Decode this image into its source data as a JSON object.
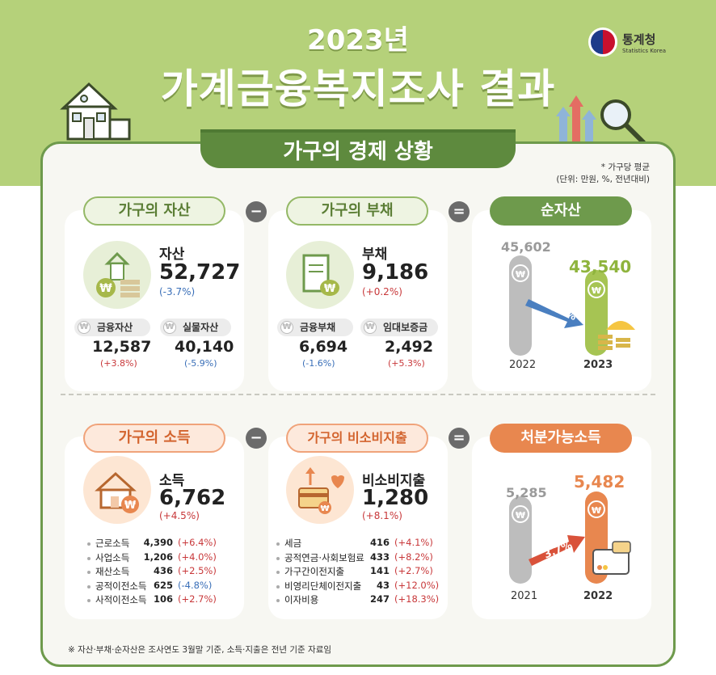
{
  "header": {
    "year": "2023년",
    "title": "가계금융복지조사 결과",
    "logo_ko": "통계청",
    "logo_en": "Statistics Korea"
  },
  "section": {
    "title": "가구의 경제 상황",
    "note1": "* 가구당 평균",
    "note2": "(단위: 만원, %, 전년대비)"
  },
  "operators": {
    "minus": "−",
    "equals": "="
  },
  "assets": {
    "pill": "가구의 자산",
    "label": "자산",
    "value": "52,727",
    "change": "(-3.7%)",
    "sub": [
      {
        "label": "금융자산",
        "value": "12,587",
        "change": "(+3.8%)"
      },
      {
        "label": "실물자산",
        "value": "40,140",
        "change": "(-5.9%)"
      }
    ]
  },
  "debt": {
    "pill": "가구의 부채",
    "label": "부채",
    "value": "9,186",
    "change": "(+0.2%)",
    "sub": [
      {
        "label": "금융부채",
        "value": "6,694",
        "change": "(-1.6%)"
      },
      {
        "label": "임대보증금",
        "value": "2,492",
        "change": "(+5.3%)"
      }
    ]
  },
  "net_assets": {
    "pill": "순자산",
    "years": [
      "2022",
      "2023"
    ],
    "values_text": [
      "45,602",
      "43,540"
    ],
    "change": "-4.5%"
  },
  "income": {
    "pill": "가구의 소득",
    "label": "소득",
    "value": "6,762",
    "change": "(+4.5%)",
    "items": [
      {
        "name": "근로소득",
        "value": "4,390",
        "change": "(+6.4%)"
      },
      {
        "name": "사업소득",
        "value": "1,206",
        "change": "(+4.0%)"
      },
      {
        "name": "재산소득",
        "value": "436",
        "change": "(+2.5%)"
      },
      {
        "name": "공적이전소득",
        "value": "625",
        "change": "(-4.8%)"
      },
      {
        "name": "사적이전소득",
        "value": "106",
        "change": "(+2.7%)"
      }
    ]
  },
  "nonconsumption": {
    "pill": "가구의 비소비지출",
    "label": "비소비지출",
    "value": "1,280",
    "change": "(+8.1%)",
    "items": [
      {
        "name": "세금",
        "value": "416",
        "change": "(+4.1%)"
      },
      {
        "name": "공적연금·사회보험료",
        "value": "433",
        "change": "(+8.2%)"
      },
      {
        "name": "가구간이전지출",
        "value": "141",
        "change": "(+2.7%)"
      },
      {
        "name": "비영리단체이전지출",
        "value": "43",
        "change": "(+12.0%)"
      },
      {
        "name": "이자비용",
        "value": "247",
        "change": "(+18.3%)"
      }
    ]
  },
  "disposable": {
    "pill": "처분가능소득",
    "years": [
      "2021",
      "2022"
    ],
    "values_text": [
      "5,285",
      "5,482"
    ],
    "change": "3.7%"
  },
  "footer": "※ 자산·부채·순자산은 조사연도 3월말 기준, 소득·지출은 전년 기준 자료임",
  "colors": {
    "green": "#6e9a4c",
    "light_green": "#b5d17a",
    "orange": "#e8874f",
    "red": "#c8383a",
    "blue": "#3a6fb8",
    "gray_bar": "#bdbdbd"
  }
}
